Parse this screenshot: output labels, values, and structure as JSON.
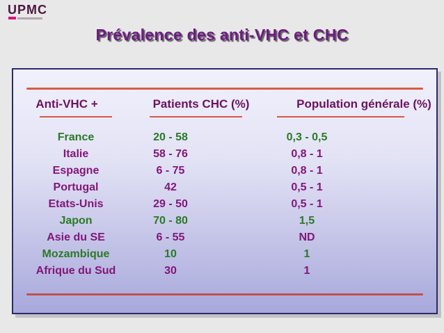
{
  "slide": {
    "title": "Prévalence des anti-VHC et CHC"
  },
  "logo": {
    "text": "UPMC"
  },
  "table": {
    "headers": [
      {
        "label": "Anti-VHC +"
      },
      {
        "label": "Patients CHC (%)"
      },
      {
        "label": "Population générale (%)"
      }
    ],
    "rows": [
      {
        "country": "France",
        "chc": "20 - 58",
        "pop": "0,3 - 0,5",
        "color": "green"
      },
      {
        "country": "Italie",
        "chc": "58 - 76",
        "pop": "0,8 - 1",
        "color": "purple"
      },
      {
        "country": "Espagne",
        "chc": "6 - 75",
        "pop": "0,8 - 1",
        "color": "purple"
      },
      {
        "country": "Portugal",
        "chc": "42",
        "pop": "0,5 - 1",
        "color": "purple"
      },
      {
        "country": "Etats-Unis",
        "chc": "29 - 50",
        "pop": "0,5 - 1",
        "color": "purple"
      },
      {
        "country": "Japon",
        "chc": "70 - 80",
        "pop": "1,5",
        "color": "green"
      },
      {
        "country": "Asie du SE",
        "chc": "6 - 55",
        "pop": "ND",
        "color": "purple"
      },
      {
        "country": "Mozambique",
        "chc": "10",
        "pop": "1",
        "color": "green"
      },
      {
        "country": "Afrique du Sud",
        "chc": "30",
        "pop": "1",
        "color": "purple"
      }
    ]
  },
  "colors": {
    "title_purple": "#6C1D80",
    "header_purple": "#6C125F",
    "row_purple": "#821779",
    "row_green": "#2A7A24",
    "rule_orange": "#D85A46",
    "rule_red": "#C2504C",
    "panel_border_navy": "#2B2B68",
    "panel_top": "#F1F1FC",
    "panel_bottom": "#A8A8DC",
    "slide_background": "#E8E8E8",
    "logo_plum": "#4C1642",
    "logo_pink": "#D9147B"
  }
}
